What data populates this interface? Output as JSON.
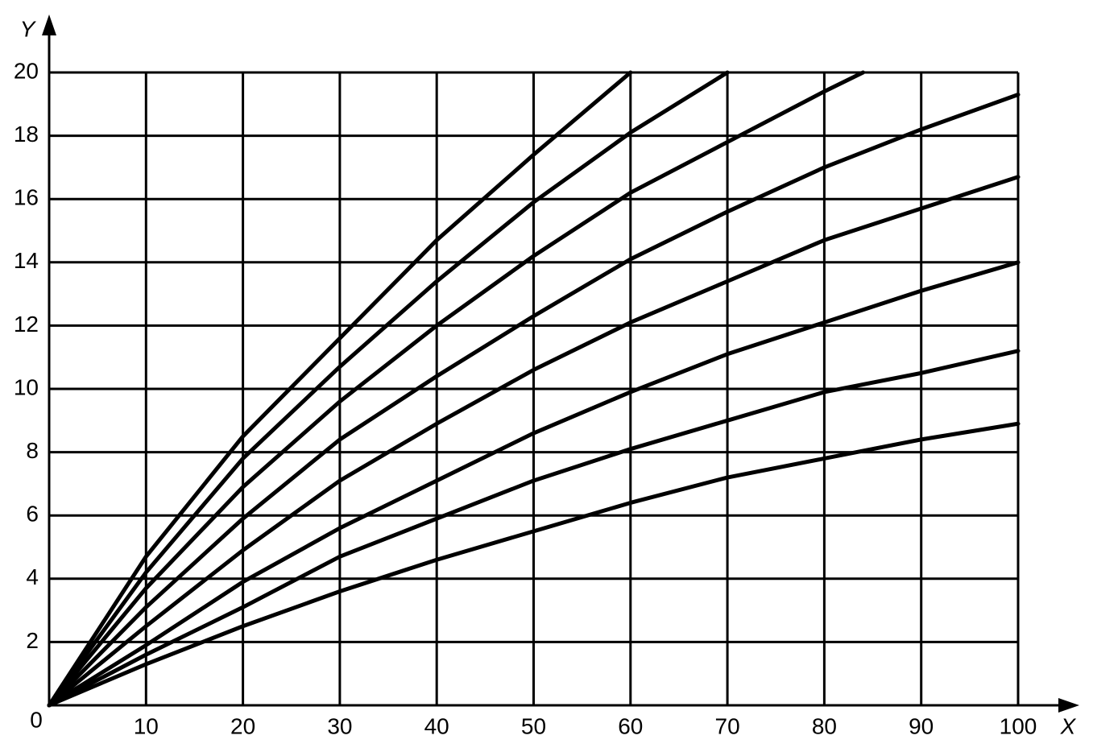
{
  "chart_data": {
    "type": "line",
    "x_label": "X",
    "y_label": "Y",
    "xlim": [
      0,
      100
    ],
    "ylim": [
      0,
      20
    ],
    "xticks": [
      10,
      20,
      30,
      40,
      50,
      60,
      70,
      80,
      90,
      100
    ],
    "yticks": [
      0,
      2,
      4,
      6,
      8,
      10,
      12,
      14,
      16,
      18,
      20
    ],
    "grid": true,
    "series": [
      {
        "color": "#000000",
        "x": [
          0,
          10,
          20,
          30,
          40,
          50,
          60
        ],
        "values": [
          0,
          4.7,
          8.5,
          11.6,
          14.7,
          17.4,
          20
        ]
      },
      {
        "color": "#000000",
        "x": [
          0,
          10,
          20,
          30,
          40,
          50,
          60,
          70
        ],
        "values": [
          0,
          4.2,
          7.8,
          10.7,
          13.4,
          15.9,
          18.1,
          20
        ]
      },
      {
        "color": "#000000",
        "x": [
          0,
          10,
          20,
          30,
          40,
          50,
          60,
          70,
          80,
          84
        ],
        "values": [
          0,
          3.7,
          6.9,
          9.6,
          12.0,
          14.2,
          16.2,
          17.8,
          19.4,
          20
        ]
      },
      {
        "color": "#000000",
        "x": [
          0,
          10,
          20,
          30,
          40,
          50,
          60,
          70,
          80,
          90,
          100
        ],
        "values": [
          0,
          3.1,
          5.9,
          8.4,
          10.4,
          12.3,
          14.1,
          15.6,
          17.0,
          18.2,
          19.3
        ]
      },
      {
        "color": "#000000",
        "x": [
          0,
          10,
          20,
          30,
          40,
          50,
          60,
          70,
          80,
          90,
          100
        ],
        "values": [
          0,
          2.5,
          4.9,
          7.1,
          8.9,
          10.6,
          12.1,
          13.4,
          14.7,
          15.7,
          16.7
        ]
      },
      {
        "color": "#000000",
        "x": [
          0,
          10,
          20,
          30,
          40,
          50,
          60,
          70,
          80,
          90,
          100
        ],
        "values": [
          0,
          1.9,
          3.9,
          5.6,
          7.1,
          8.6,
          9.9,
          11.1,
          12.1,
          13.1,
          14.0
        ]
      },
      {
        "color": "#000000",
        "x": [
          0,
          10,
          20,
          30,
          40,
          50,
          60,
          70,
          80,
          90,
          100
        ],
        "values": [
          0,
          1.6,
          3.1,
          4.7,
          5.9,
          7.1,
          8.1,
          9.0,
          9.9,
          10.5,
          11.2
        ]
      },
      {
        "color": "#000000",
        "x": [
          0,
          10,
          20,
          30,
          40,
          50,
          60,
          70,
          80,
          90,
          100
        ],
        "values": [
          0,
          1.3,
          2.5,
          3.6,
          4.6,
          5.5,
          6.4,
          7.2,
          7.8,
          8.4,
          8.9
        ]
      }
    ]
  }
}
